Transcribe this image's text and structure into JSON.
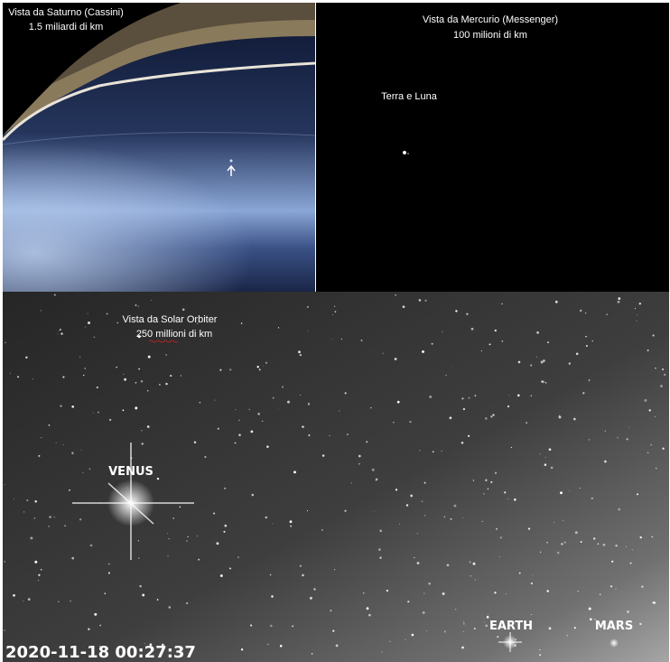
{
  "saturn": {
    "title": "Vista da Saturno (Cassini)",
    "distance": "1.5 miliardi di km"
  },
  "mercury": {
    "title": "Vista da Mercurio (Messenger)",
    "distance": "100 milioni di km",
    "label": "Terra e Luna"
  },
  "solar_orbiter": {
    "title": "Vista da Solar Orbiter",
    "distance": "250 millioni di km",
    "labels": {
      "venus": "VENUS",
      "earth": "EARTH",
      "mars": "MARS"
    },
    "timestamp": "2020-11-18 00:27:37"
  }
}
